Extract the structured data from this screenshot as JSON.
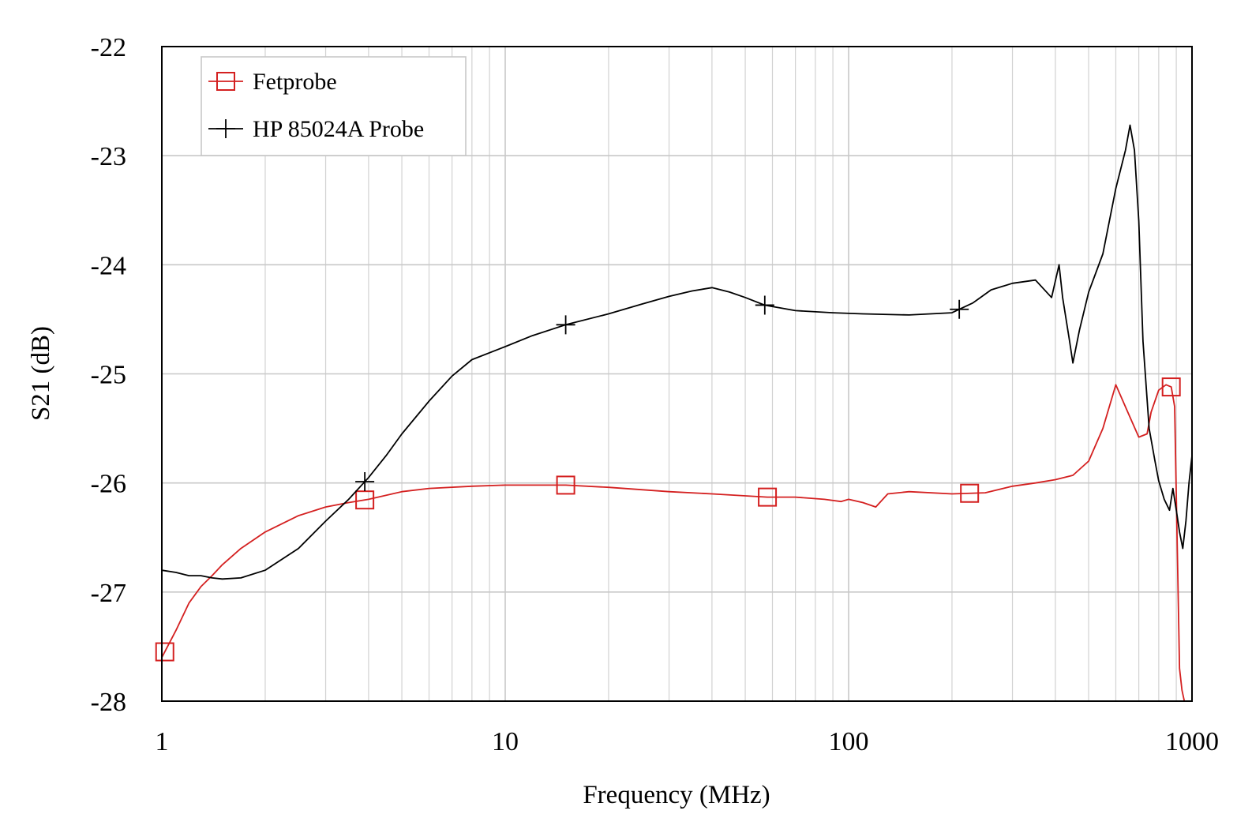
{
  "chart_data": {
    "type": "line",
    "xlabel": "Frequency (MHz)",
    "ylabel": "S21 (dB)",
    "x_scale": "log",
    "xlim": [
      1,
      1000
    ],
    "ylim": [
      -28,
      -22
    ],
    "x_ticks": [
      1,
      10,
      100,
      1000
    ],
    "x_tick_labels": [
      "1",
      "10",
      "100",
      "1000"
    ],
    "y_ticks": [
      -22,
      -23,
      -24,
      -25,
      -26,
      -27,
      -28
    ],
    "y_tick_labels": [
      "-22",
      "-23",
      "-24",
      "-25",
      "-26",
      "-27",
      "-28"
    ],
    "grid": true,
    "legend_position": "top-left",
    "series": [
      {
        "name": "Fetprobe",
        "color": "#d42020",
        "marker": "square",
        "marker_x": [
          1.02,
          3.9,
          15,
          58,
          225,
          870
        ],
        "x": [
          1.0,
          1.1,
          1.2,
          1.3,
          1.4,
          1.5,
          1.7,
          2.0,
          2.5,
          3.0,
          3.5,
          4.0,
          5.0,
          6.0,
          8.0,
          10,
          12,
          15,
          20,
          30,
          40,
          58,
          70,
          85,
          95,
          100,
          110,
          120,
          130,
          150,
          200,
          250,
          300,
          350,
          400,
          450,
          500,
          550,
          600,
          650,
          700,
          740,
          760,
          800,
          840,
          870,
          890,
          905,
          920,
          935,
          950
        ],
        "y": [
          -27.6,
          -27.35,
          -27.1,
          -26.95,
          -26.85,
          -26.75,
          -26.6,
          -26.45,
          -26.3,
          -26.22,
          -26.18,
          -26.15,
          -26.08,
          -26.05,
          -26.03,
          -26.02,
          -26.02,
          -26.02,
          -26.04,
          -26.08,
          -26.1,
          -26.13,
          -26.13,
          -26.15,
          -26.17,
          -26.15,
          -26.18,
          -26.22,
          -26.1,
          -26.08,
          -26.1,
          -26.09,
          -26.03,
          -26.0,
          -25.97,
          -25.93,
          -25.8,
          -25.5,
          -25.1,
          -25.35,
          -25.58,
          -25.55,
          -25.35,
          -25.15,
          -25.1,
          -25.12,
          -25.3,
          -26.5,
          -27.7,
          -27.9,
          -28.0
        ]
      },
      {
        "name": "HP 85024A Probe",
        "color": "#000000",
        "marker": "plus",
        "marker_x": [
          3.9,
          15,
          57,
          210
        ],
        "x": [
          1.0,
          1.1,
          1.2,
          1.3,
          1.4,
          1.5,
          1.7,
          2.0,
          2.5,
          3.0,
          3.5,
          4.0,
          4.5,
          5.0,
          6.0,
          7.0,
          8.0,
          10,
          12,
          15,
          20,
          25,
          30,
          35,
          40,
          45,
          50,
          57,
          70,
          90,
          110,
          150,
          200,
          230,
          260,
          300,
          350,
          390,
          410,
          420,
          440,
          450,
          470,
          500,
          550,
          600,
          640,
          660,
          680,
          700,
          720,
          750,
          780,
          800,
          830,
          860,
          880,
          900,
          920,
          940,
          960,
          980,
          1000
        ],
        "y": [
          -26.8,
          -26.82,
          -26.85,
          -26.85,
          -26.87,
          -26.88,
          -26.87,
          -26.8,
          -26.6,
          -26.35,
          -26.15,
          -25.95,
          -25.75,
          -25.55,
          -25.25,
          -25.02,
          -24.87,
          -24.75,
          -24.65,
          -24.55,
          -24.45,
          -24.36,
          -24.29,
          -24.24,
          -24.21,
          -24.25,
          -24.3,
          -24.37,
          -24.42,
          -24.44,
          -24.45,
          -24.46,
          -24.44,
          -24.35,
          -24.23,
          -24.17,
          -24.14,
          -24.3,
          -24.0,
          -24.3,
          -24.7,
          -24.9,
          -24.6,
          -24.25,
          -23.9,
          -23.3,
          -22.95,
          -22.72,
          -22.95,
          -23.6,
          -24.7,
          -25.5,
          -25.8,
          -25.98,
          -26.15,
          -26.25,
          -26.05,
          -26.25,
          -26.45,
          -26.6,
          -26.35,
          -26.0,
          -25.75
        ]
      }
    ]
  }
}
